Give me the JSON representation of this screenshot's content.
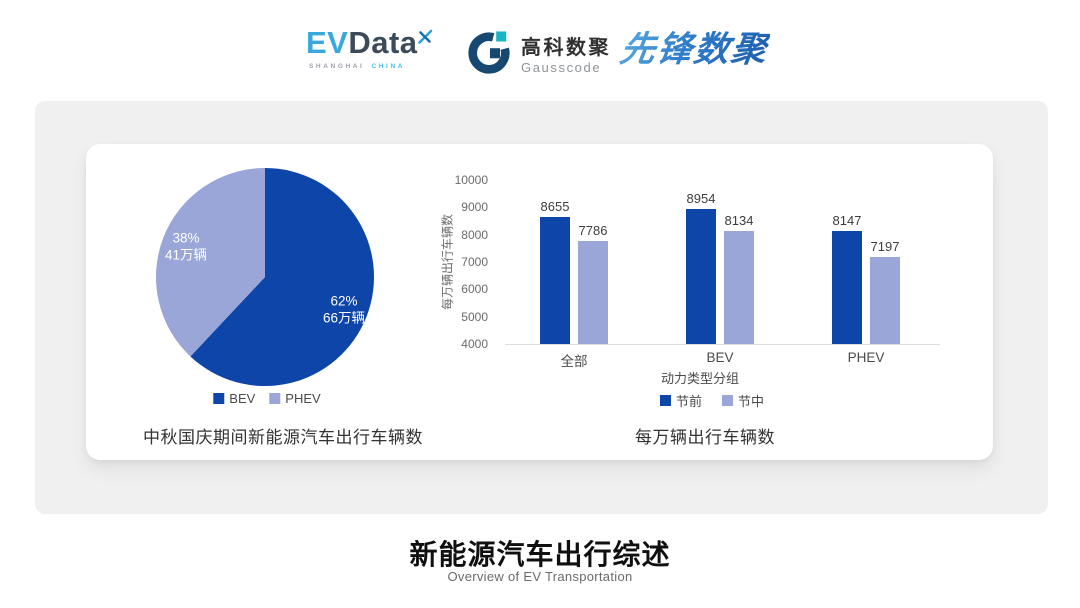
{
  "page": {
    "background": "#ffffff",
    "panel_background": "#f0f0f0",
    "card_background": "#ffffff"
  },
  "header": {
    "evdata_logo": {
      "ev": "EV",
      "data": "Data",
      "sub_left": "SHANGHAI",
      "sub_right": "CHINA",
      "mark_icon": "x-spark",
      "ev_color": "#3aa8dc",
      "data_color": "#3d4a59"
    },
    "gausscode_logo": {
      "icon": "g-mark",
      "cn": "高科数聚",
      "en": "Gausscode",
      "icon_dark": "#17486f",
      "icon_teal": "#1ab5c3"
    },
    "xianfeng_logo": {
      "text": "先锋数聚",
      "color": "#2f7cc9"
    }
  },
  "chart_data": [
    {
      "type": "pie",
      "title": "中秋国庆期间新能源汽车出行车辆数",
      "unit": "万辆",
      "slices": [
        {
          "label": "BEV",
          "percent": 62,
          "percent_label": "62%",
          "amount_label": "66万辆",
          "value": 66,
          "color": "#0e45a8"
        },
        {
          "label": "PHEV",
          "percent": 38,
          "percent_label": "38%",
          "amount_label": "41万辆",
          "value": 41,
          "color": "#9aa6d8"
        }
      ],
      "legend": [
        "BEV",
        "PHEV"
      ],
      "legend_position": "bottom",
      "label_text_color": "#ffffff"
    },
    {
      "type": "bar",
      "title": "每万辆出行车辆数",
      "categories": [
        "全部",
        "BEV",
        "PHEV"
      ],
      "series": [
        {
          "name": "节前",
          "values": [
            8655,
            8954,
            8147
          ],
          "color": "#0e45a8"
        },
        {
          "name": "节中",
          "values": [
            7786,
            8134,
            7197
          ],
          "color": "#9aa6d8"
        }
      ],
      "xlabel": "动力类型分组",
      "ylabel": "每万辆出行车辆数",
      "ylim": [
        4000,
        10000
      ],
      "ytick_step": 1000,
      "grid": false,
      "legend_position": "bottom"
    }
  ],
  "footer": {
    "title": "新能源汽车出行综述",
    "subtitle": "Overview of EV Transportation"
  }
}
